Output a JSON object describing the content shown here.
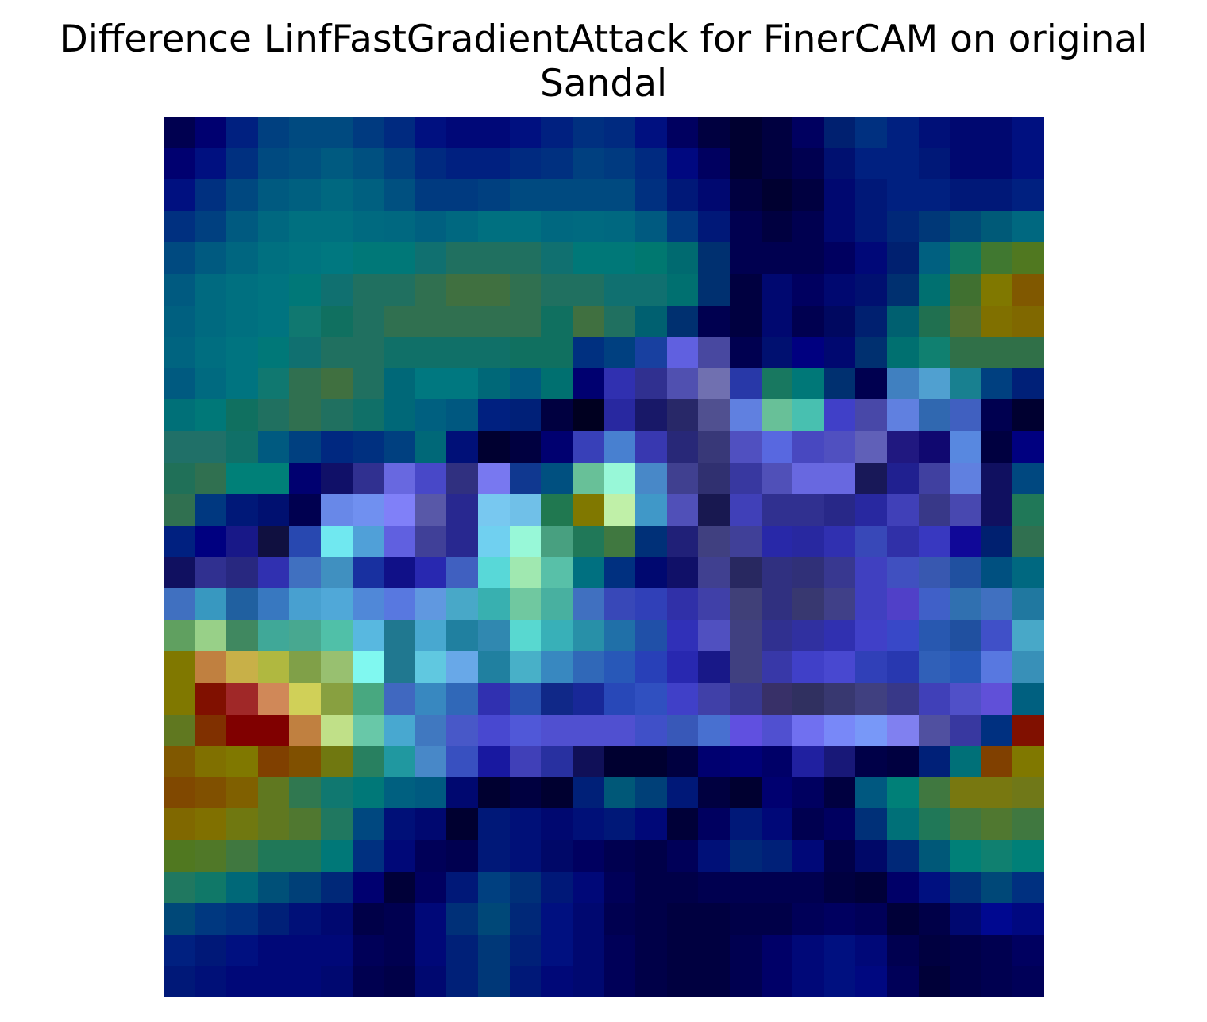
{
  "figure": {
    "title_line1": "Difference LinfFastGradientAttack for FinerCAM on original",
    "title_line2": "Sandal"
  },
  "heatmap": {
    "rows": 28,
    "cols": 28,
    "colors": [
      [
        "#000050",
        "#000070",
        "#002080",
        "#004080",
        "#004a80",
        "#004a80",
        "#003a80",
        "#002a80",
        "#001080",
        "#000878",
        "#000878",
        "#001080",
        "#002080",
        "#003080",
        "#002a80",
        "#001080",
        "#000060",
        "#000040",
        "#000030",
        "#000040",
        "#000060",
        "#002070",
        "#003080",
        "#002080",
        "#001078",
        "#000870",
        "#000870",
        "#001080"
      ],
      [
        "#000070",
        "#001080",
        "#003080",
        "#004a80",
        "#005080",
        "#005a80",
        "#005080",
        "#004080",
        "#002a80",
        "#002080",
        "#002080",
        "#002a80",
        "#003080",
        "#004080",
        "#003a80",
        "#002a80",
        "#000880",
        "#000060",
        "#000030",
        "#000040",
        "#000050",
        "#001070",
        "#002080",
        "#002080",
        "#001878",
        "#000870",
        "#000870",
        "#001080"
      ],
      [
        "#001080",
        "#003080",
        "#004880",
        "#005a80",
        "#006080",
        "#006880",
        "#006080",
        "#005080",
        "#003a80",
        "#003a80",
        "#004080",
        "#004a80",
        "#004a80",
        "#004a80",
        "#004a80",
        "#003080",
        "#001878",
        "#000870",
        "#000040",
        "#000030",
        "#000040",
        "#000870",
        "#001878",
        "#002080",
        "#002080",
        "#001878",
        "#001878",
        "#002080"
      ],
      [
        "#003080",
        "#004080",
        "#005a80",
        "#006880",
        "#007080",
        "#007080",
        "#006a80",
        "#006880",
        "#006080",
        "#006880",
        "#007080",
        "#007080",
        "#006880",
        "#006a80",
        "#006880",
        "#005a80",
        "#003880",
        "#001878",
        "#000050",
        "#000040",
        "#000050",
        "#000870",
        "#001878",
        "#002878",
        "#003878",
        "#004a78",
        "#005a78",
        "#006880"
      ],
      [
        "#004a80",
        "#005a80",
        "#006680",
        "#007080",
        "#007480",
        "#007880",
        "#007878",
        "#007878",
        "#107070",
        "#207060",
        "#207060",
        "#207060",
        "#107070",
        "#007878",
        "#007878",
        "#007870",
        "#006a70",
        "#003070",
        "#000050",
        "#000050",
        "#000050",
        "#000060",
        "#000878",
        "#002070",
        "#006080",
        "#107860",
        "#407830",
        "#507820"
      ],
      [
        "#005a80",
        "#006a80",
        "#007080",
        "#007480",
        "#007878",
        "#107070",
        "#207060",
        "#207060",
        "#307050",
        "#407040",
        "#407040",
        "#307050",
        "#207060",
        "#207060",
        "#107070",
        "#107070",
        "#007070",
        "#003070",
        "#000040",
        "#000870",
        "#000060",
        "#000870",
        "#001070",
        "#003070",
        "#007070",
        "#407030",
        "#807800",
        "#805800"
      ],
      [
        "#006080",
        "#006a80",
        "#007080",
        "#007480",
        "#107870",
        "#107060",
        "#207060",
        "#307050",
        "#307050",
        "#307050",
        "#307050",
        "#307050",
        "#107060",
        "#407040",
        "#207060",
        "#006070",
        "#003070",
        "#000050",
        "#000040",
        "#000870",
        "#000050",
        "#000860",
        "#002070",
        "#006070",
        "#207050",
        "#507030",
        "#807000",
        "#806800"
      ],
      [
        "#006480",
        "#006e80",
        "#007480",
        "#007878",
        "#107070",
        "#207060",
        "#207060",
        "#107068",
        "#107068",
        "#107068",
        "#107068",
        "#107060",
        "#107060",
        "#003080",
        "#004080",
        "#1840a0",
        "#6060e0",
        "#4848a0",
        "#000050",
        "#001070",
        "#000080",
        "#000870",
        "#003070",
        "#007070",
        "#108070",
        "#307048",
        "#307048",
        "#307048"
      ],
      [
        "#005a80",
        "#006a80",
        "#007480",
        "#107870",
        "#307050",
        "#407040",
        "#207060",
        "#006878",
        "#007880",
        "#007880",
        "#006878",
        "#005a80",
        "#007070",
        "#000070",
        "#3030b0",
        "#303090",
        "#5050b0",
        "#7070b0",
        "#2838a8",
        "#187860",
        "#007878",
        "#003070",
        "#000050",
        "#4080c0",
        "#50a0d0",
        "#188090",
        "#004080",
        "#002078"
      ],
      [
        "#007078",
        "#007878",
        "#107060",
        "#207060",
        "#307050",
        "#207060",
        "#107068",
        "#006878",
        "#006080",
        "#005880",
        "#002080",
        "#002078",
        "#000040",
        "#000020",
        "#2828a0",
        "#181868",
        "#282868",
        "#505090",
        "#6080e0",
        "#68c098",
        "#48c0b0",
        "#4040c8",
        "#4848a8",
        "#6080e0",
        "#3068b0",
        "#4060c0",
        "#000050",
        "#000030"
      ],
      [
        "#207068",
        "#207068",
        "#107068",
        "#005a80",
        "#004080",
        "#002880",
        "#003080",
        "#004080",
        "#006878",
        "#001078",
        "#000030",
        "#000040",
        "#000070",
        "#3840b8",
        "#4880d0",
        "#3838b0",
        "#282878",
        "#383878",
        "#5050c0",
        "#5868e0",
        "#4848c0",
        "#5050c0",
        "#6060b8",
        "#201880",
        "#100870",
        "#5888e0",
        "#000040",
        "#000080"
      ],
      [
        "#207058",
        "#307050",
        "#008078",
        "#008078",
        "#000070",
        "#101068",
        "#303090",
        "#6868e0",
        "#4848c8",
        "#303080",
        "#7878f0",
        "#103890",
        "#005080",
        "#68c098",
        "#98f8d8",
        "#4888c8",
        "#404090",
        "#303070",
        "#3838a0",
        "#5050b8",
        "#6868e0",
        "#6868e0",
        "#181858",
        "#202090",
        "#4040a0",
        "#6080e0",
        "#101060",
        "#004880"
      ],
      [
        "#307050",
        "#003880",
        "#001878",
        "#001070",
        "#000050",
        "#6888e8",
        "#7090f0",
        "#8080f8",
        "#5858a8",
        "#282890",
        "#78c8f0",
        "#70c0e8",
        "#207850",
        "#807800",
        "#c0f0a8",
        "#4098c8",
        "#5050b8",
        "#181850",
        "#4040b8",
        "#303090",
        "#303090",
        "#282888",
        "#2828a0",
        "#4040b8",
        "#383888",
        "#4848b0",
        "#101060",
        "#207858"
      ],
      [
        "#002080",
        "#000080",
        "#181888",
        "#101040",
        "#2848b0",
        "#70e8f0",
        "#50a0d8",
        "#6060e0",
        "#404098",
        "#282890",
        "#70d0f0",
        "#98f8d8",
        "#48a080",
        "#207858",
        "#407840",
        "#003078",
        "#202078",
        "#404080",
        "#404098",
        "#2828a8",
        "#2828a0",
        "#3030b0",
        "#3848b8",
        "#3030a8",
        "#3838c0",
        "#100898",
        "#002070",
        "#307050"
      ],
      [
        "#101060",
        "#303090",
        "#282880",
        "#3030b0",
        "#4070c0",
        "#4090c0",
        "#1830a0",
        "#101088",
        "#2828b0",
        "#4060c0",
        "#58d8d8",
        "#a0e8b0",
        "#58c0a8",
        "#007080",
        "#003080",
        "#000870",
        "#101068",
        "#404090",
        "#282860",
        "#303080",
        "#303078",
        "#383890",
        "#4040c0",
        "#4050c0",
        "#3858b0",
        "#2050a0",
        "#005080",
        "#006880"
      ],
      [
        "#4070c0",
        "#3898c0",
        "#2060a0",
        "#3878c0",
        "#48a0d0",
        "#50a8d8",
        "#5088d8",
        "#5878e0",
        "#6098e0",
        "#48a8c8",
        "#38b0b0",
        "#70c8a0",
        "#48b0a0",
        "#4070c0",
        "#3848b8",
        "#3040b8",
        "#3030a8",
        "#4040a8",
        "#404078",
        "#303080",
        "#383870",
        "#404088",
        "#4040c0",
        "#5040c8",
        "#4060c8",
        "#3070b0",
        "#4070c0",
        "#2078a0"
      ],
      [
        "#60a060",
        "#98d088",
        "#408860",
        "#40a898",
        "#48a890",
        "#50c0a8",
        "#58b8e0",
        "#207890",
        "#48a8d0",
        "#2080a0",
        "#3088b0",
        "#58d8d0",
        "#38b0b8",
        "#2890a8",
        "#2070a8",
        "#2050a8",
        "#3030b8",
        "#5050c0",
        "#404080",
        "#303090",
        "#3030a0",
        "#3030b0",
        "#4040c8",
        "#3848c8",
        "#2858b0",
        "#2050a0",
        "#4050c8",
        "#48a8c8"
      ],
      [
        "#807800",
        "#c08040",
        "#c8b048",
        "#b0b840",
        "#80a048",
        "#98c070",
        "#80f8f0",
        "#207890",
        "#60c8e0",
        "#68a8e8",
        "#2080a0",
        "#48b0c8",
        "#3888c0",
        "#3068b8",
        "#2858b8",
        "#2840b8",
        "#2828b0",
        "#181888",
        "#404080",
        "#3838a8",
        "#4040c8",
        "#4848d0",
        "#3040b8",
        "#2838b0",
        "#3060b8",
        "#2858b8",
        "#5878e0",
        "#3890b8"
      ],
      [
        "#807800",
        "#801000",
        "#a02828",
        "#d08858",
        "#d0d058",
        "#88a040",
        "#48a880",
        "#4068c0",
        "#3888c0",
        "#3068b8",
        "#3030b0",
        "#2850b0",
        "#102888",
        "#182898",
        "#2848b8",
        "#3050c0",
        "#4040c8",
        "#4040a8",
        "#383890",
        "#383068",
        "#303060",
        "#383870",
        "#404080",
        "#383888",
        "#4040b8",
        "#5050c8",
        "#6050d8",
        "#006080"
      ],
      [
        "#607820",
        "#803000",
        "#800000",
        "#800000",
        "#c08040",
        "#c0e088",
        "#68c8a8",
        "#48a8d0",
        "#4078c0",
        "#4858c8",
        "#4848d0",
        "#5058d8",
        "#5050d0",
        "#5050d0",
        "#5050d0",
        "#4050c8",
        "#3858b8",
        "#4870d0",
        "#6050e0",
        "#5050d0",
        "#7070f0",
        "#7888f8",
        "#7898f8",
        "#8080f0",
        "#5050a0",
        "#3838a0",
        "#003080",
        "#801000"
      ],
      [
        "#805800",
        "#807000",
        "#807800",
        "#804000",
        "#805000",
        "#707810",
        "#288060",
        "#2098a0",
        "#4888c8",
        "#3850c0",
        "#1818a0",
        "#4040b8",
        "#2830a0",
        "#101058",
        "#000030",
        "#000030",
        "#000040",
        "#000070",
        "#000078",
        "#000068",
        "#2020a0",
        "#181878",
        "#000048",
        "#000040",
        "#002078",
        "#007078",
        "#804000",
        "#807800"
      ],
      [
        "#804800",
        "#805000",
        "#806000",
        "#607820",
        "#307850",
        "#107870",
        "#007878",
        "#006080",
        "#005a80",
        "#000870",
        "#000030",
        "#000040",
        "#000030",
        "#002078",
        "#005878",
        "#004078",
        "#001878",
        "#000040",
        "#000030",
        "#000070",
        "#000060",
        "#000040",
        "#005880",
        "#008078",
        "#407840",
        "#787810",
        "#787810",
        "#707818"
      ],
      [
        "#806800",
        "#807000",
        "#707810",
        "#607820",
        "#507830",
        "#207860",
        "#004880",
        "#001078",
        "#000870",
        "#000030",
        "#001878",
        "#001078",
        "#000870",
        "#001078",
        "#001878",
        "#000878",
        "#000038",
        "#000060",
        "#001878",
        "#000878",
        "#000050",
        "#000060",
        "#003078",
        "#007078",
        "#207858",
        "#407840",
        "#507830",
        "#407840"
      ],
      [
        "#507820",
        "#507828",
        "#407840",
        "#207858",
        "#207858",
        "#007878",
        "#003080",
        "#000878",
        "#000058",
        "#000050",
        "#001878",
        "#001078",
        "#000868",
        "#000060",
        "#000050",
        "#000048",
        "#000058",
        "#001078",
        "#002878",
        "#002078",
        "#000878",
        "#000048",
        "#000868",
        "#002878",
        "#005878",
        "#008078",
        "#108070",
        "#008078"
      ],
      [
        "#207860",
        "#107868",
        "#006878",
        "#005078",
        "#004078",
        "#002878",
        "#000070",
        "#000038",
        "#000060",
        "#001878",
        "#004080",
        "#003078",
        "#001878",
        "#000878",
        "#000058",
        "#000048",
        "#000048",
        "#000050",
        "#000050",
        "#000050",
        "#000050",
        "#000040",
        "#000038",
        "#000068",
        "#001080",
        "#003078",
        "#004878",
        "#003080"
      ],
      [
        "#004878",
        "#003880",
        "#003080",
        "#002078",
        "#001078",
        "#000870",
        "#000048",
        "#000050",
        "#000878",
        "#003078",
        "#004878",
        "#002878",
        "#001080",
        "#000870",
        "#000050",
        "#000048",
        "#000040",
        "#000040",
        "#000048",
        "#000048",
        "#000058",
        "#000060",
        "#000058",
        "#000038",
        "#000048",
        "#000870",
        "#000890",
        "#000880"
      ],
      [
        "#002080",
        "#001878",
        "#001080",
        "#000878",
        "#000878",
        "#000878",
        "#000058",
        "#000050",
        "#000878",
        "#002078",
        "#003878",
        "#002078",
        "#001080",
        "#000870",
        "#000058",
        "#000048",
        "#000040",
        "#000040",
        "#000050",
        "#000068",
        "#000878",
        "#001080",
        "#000878",
        "#000050",
        "#000040",
        "#000048",
        "#000050",
        "#000060"
      ],
      [
        "#001878",
        "#001078",
        "#000878",
        "#000878",
        "#000878",
        "#000870",
        "#000050",
        "#000048",
        "#000870",
        "#002078",
        "#003878",
        "#001878",
        "#000878",
        "#000870",
        "#000058",
        "#000048",
        "#000040",
        "#000040",
        "#000050",
        "#000068",
        "#000878",
        "#001080",
        "#000880",
        "#000058",
        "#000038",
        "#000048",
        "#000050",
        "#000058"
      ]
    ]
  }
}
